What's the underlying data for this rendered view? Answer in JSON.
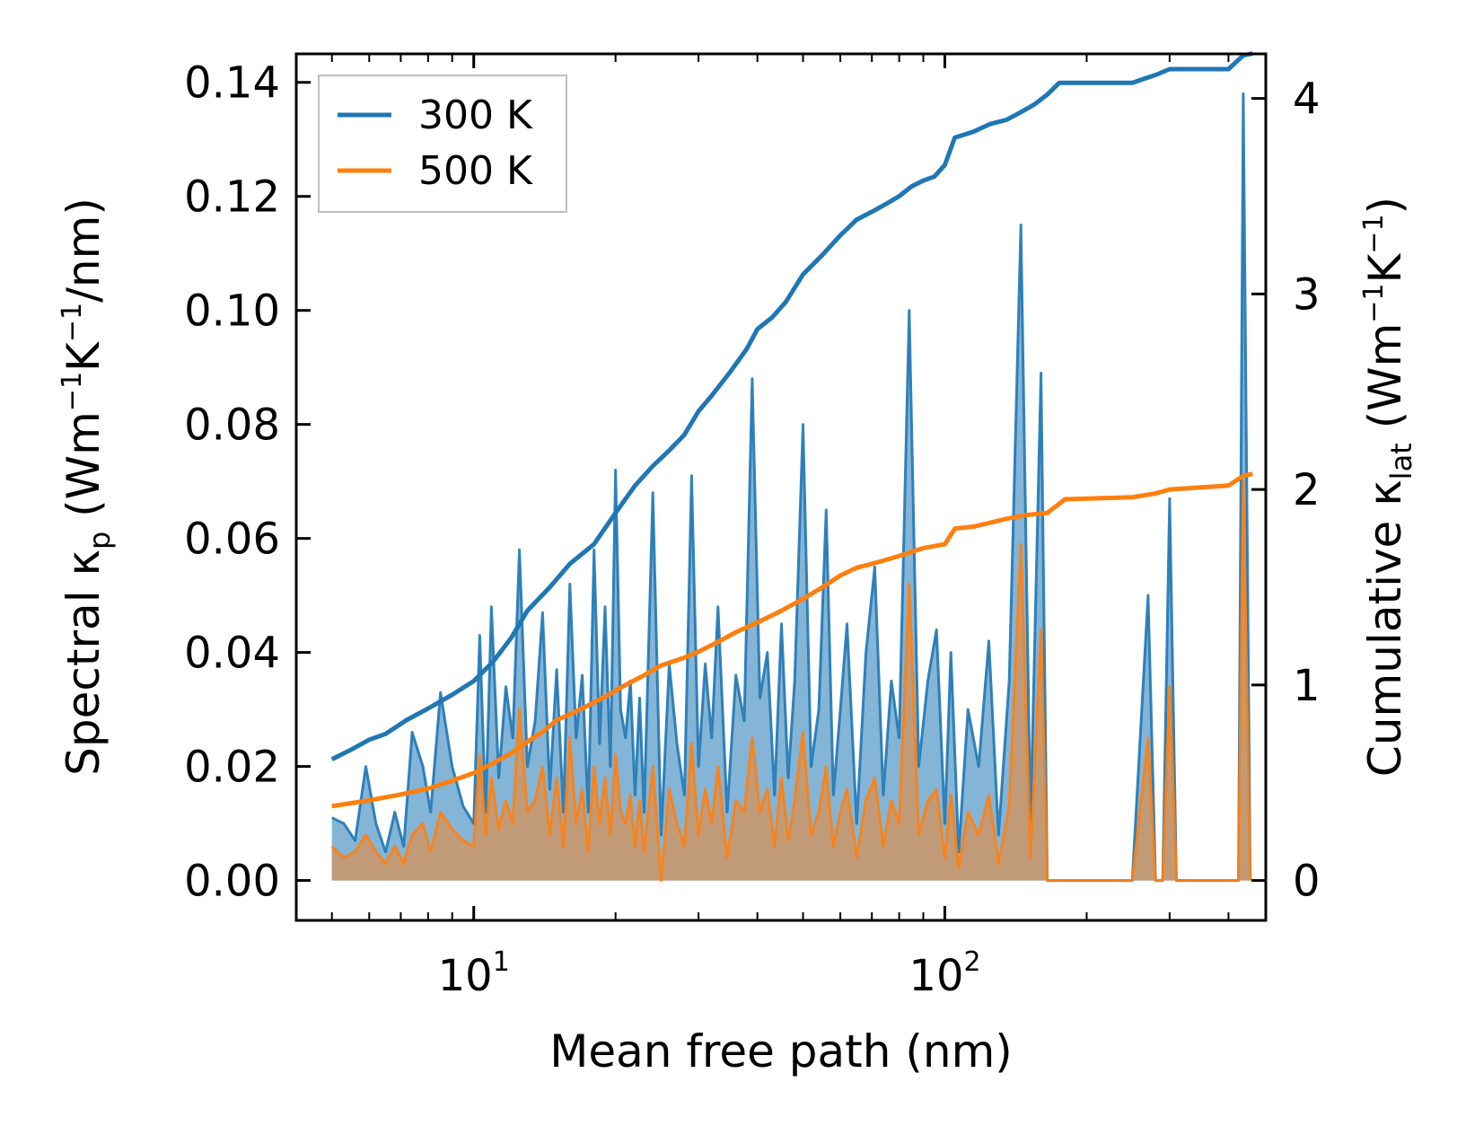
{
  "chart_data": {
    "type": "line",
    "xscale": "log",
    "xlim": [
      4.2,
      480
    ],
    "ylim_left": [
      -0.007,
      0.145
    ],
    "ylim_right": [
      -0.204,
      4.228
    ],
    "xlabel": "Mean free path (nm)",
    "ylabel_left": {
      "prefix": "Spectral κ",
      "sub": "p",
      "mid": " (Wm",
      "sup1": "−1",
      "mid2": "K",
      "sup2": "−1",
      "suffix": "/nm)"
    },
    "ylabel_right": {
      "prefix": "Cumulative κ",
      "sub": "lat",
      "mid": " (Wm",
      "sup1": "−1",
      "mid2": "K",
      "sup2": "−1",
      "suffix": ")"
    },
    "x_ticks": [
      {
        "value": 10,
        "base": "10",
        "exp": "1"
      },
      {
        "value": 100,
        "base": "10",
        "exp": "2"
      }
    ],
    "left_ticks": [
      {
        "value": 0.0,
        "label": "0.00"
      },
      {
        "value": 0.02,
        "label": "0.02"
      },
      {
        "value": 0.04,
        "label": "0.04"
      },
      {
        "value": 0.06,
        "label": "0.06"
      },
      {
        "value": 0.08,
        "label": "0.08"
      },
      {
        "value": 0.1,
        "label": "0.10"
      },
      {
        "value": 0.12,
        "label": "0.12"
      },
      {
        "value": 0.14,
        "label": "0.14"
      }
    ],
    "right_ticks": [
      {
        "value": 0,
        "label": "0"
      },
      {
        "value": 1,
        "label": "1"
      },
      {
        "value": 2,
        "label": "2"
      },
      {
        "value": 3,
        "label": "3"
      },
      {
        "value": 4,
        "label": "4"
      }
    ],
    "legend": {
      "position": "top-left",
      "entries": [
        {
          "label": "300 K",
          "color": "#1f77b4"
        },
        {
          "label": "500 K",
          "color": "#ff7f0e"
        }
      ]
    },
    "series": [
      {
        "name": "300 K",
        "axis": "right",
        "kind": "cumulative",
        "color": "#1f77b4",
        "x": [
          5.0,
          5.5,
          6.0,
          6.5,
          7.2,
          8.0,
          9.0,
          10.0,
          11.0,
          12.0,
          13.0,
          14.5,
          16.0,
          18.0,
          20.0,
          22.0,
          24.0,
          26.0,
          28.0,
          30.0,
          32.0,
          35.0,
          38.0,
          40.0,
          43.0,
          46.0,
          50.0,
          55.0,
          60.0,
          65.0,
          70.0,
          75.0,
          80.0,
          85.0,
          90.0,
          95.0,
          100.0,
          105.0,
          115.0,
          125.0,
          135.0,
          145.0,
          155.0,
          165.0,
          175.0,
          200.0,
          250.0,
          280.0,
          300.0,
          350.0,
          400.0,
          430.0,
          450.0
        ],
        "y": [
          0.62,
          0.67,
          0.72,
          0.75,
          0.82,
          0.88,
          0.95,
          1.02,
          1.12,
          1.24,
          1.38,
          1.5,
          1.62,
          1.72,
          1.88,
          2.02,
          2.12,
          2.2,
          2.28,
          2.4,
          2.48,
          2.6,
          2.72,
          2.82,
          2.88,
          2.96,
          3.1,
          3.2,
          3.3,
          3.38,
          3.42,
          3.46,
          3.5,
          3.55,
          3.58,
          3.6,
          3.66,
          3.8,
          3.83,
          3.87,
          3.89,
          3.93,
          3.97,
          4.02,
          4.08,
          4.08,
          4.08,
          4.12,
          4.15,
          4.15,
          4.15,
          4.22,
          4.23
        ]
      },
      {
        "name": "500 K",
        "axis": "right",
        "kind": "cumulative",
        "color": "#ff7f0e",
        "x": [
          5.0,
          6.0,
          7.0,
          8.0,
          9.0,
          10.0,
          11.0,
          12.0,
          13.0,
          14.0,
          15.0,
          17.0,
          19.0,
          21.0,
          23.0,
          25.0,
          28.0,
          30.0,
          33.0,
          36.0,
          40.0,
          45.0,
          50.0,
          55.0,
          60.0,
          65.0,
          70.0,
          75.0,
          80.0,
          90.0,
          100.0,
          105.0,
          115.0,
          125.0,
          135.0,
          150.0,
          165.0,
          180.0,
          250.0,
          280.0,
          300.0,
          400.0,
          430.0,
          450.0
        ],
        "y": [
          0.38,
          0.41,
          0.44,
          0.47,
          0.51,
          0.55,
          0.6,
          0.65,
          0.71,
          0.76,
          0.82,
          0.88,
          0.94,
          1.0,
          1.05,
          1.1,
          1.14,
          1.17,
          1.22,
          1.27,
          1.32,
          1.38,
          1.44,
          1.5,
          1.56,
          1.6,
          1.62,
          1.64,
          1.66,
          1.7,
          1.72,
          1.8,
          1.81,
          1.83,
          1.85,
          1.87,
          1.88,
          1.95,
          1.96,
          1.98,
          2.0,
          2.02,
          2.07,
          2.08
        ]
      },
      {
        "name": "300 K",
        "axis": "left",
        "kind": "spectral",
        "color": "#1f77b4",
        "x": [
          5.0,
          5.3,
          5.6,
          5.9,
          6.2,
          6.5,
          6.8,
          7.1,
          7.4,
          7.8,
          8.1,
          8.5,
          9.0,
          9.5,
          10.0,
          10.3,
          10.6,
          10.9,
          11.3,
          11.7,
          12.1,
          12.5,
          13.0,
          13.5,
          14.0,
          14.5,
          15.0,
          15.5,
          16.0,
          16.5,
          17.0,
          17.5,
          18.0,
          18.5,
          19.0,
          19.5,
          20.0,
          20.5,
          21.0,
          21.5,
          22.0,
          22.5,
          23.0,
          24.0,
          25.0,
          26.0,
          27.0,
          28.0,
          29.0,
          30.0,
          31.0,
          32.0,
          33.0,
          34.5,
          36.0,
          37.5,
          39.0,
          40.5,
          42.0,
          43.5,
          45.0,
          46.5,
          48.0,
          50.0,
          52.0,
          54.0,
          56.0,
          58.0,
          60.0,
          62.0,
          65.0,
          68.0,
          71.0,
          74.0,
          77.0,
          80.0,
          84.0,
          88.0,
          92.0,
          96.0,
          100.0,
          103.0,
          107.0,
          112.0,
          118.0,
          124.0,
          130.0,
          137.0,
          145.0,
          152.0,
          160.0,
          165.0,
          170.0,
          175.0,
          180.0,
          185.0,
          200.0,
          250.0,
          270.0,
          280.0,
          290.0,
          300.0,
          310.0,
          330.0,
          350.0,
          400.0,
          420.0,
          430.0,
          445.0
        ],
        "y": [
          0.011,
          0.01,
          0.007,
          0.02,
          0.01,
          0.005,
          0.012,
          0.006,
          0.026,
          0.02,
          0.012,
          0.033,
          0.02,
          0.013,
          0.01,
          0.043,
          0.012,
          0.048,
          0.018,
          0.034,
          0.025,
          0.058,
          0.02,
          0.028,
          0.047,
          0.016,
          0.037,
          0.012,
          0.052,
          0.025,
          0.036,
          0.012,
          0.058,
          0.024,
          0.048,
          0.02,
          0.072,
          0.03,
          0.025,
          0.035,
          0.015,
          0.032,
          0.012,
          0.068,
          0.008,
          0.038,
          0.024,
          0.015,
          0.071,
          0.02,
          0.038,
          0.025,
          0.048,
          0.012,
          0.036,
          0.028,
          0.088,
          0.032,
          0.04,
          0.015,
          0.045,
          0.018,
          0.035,
          0.08,
          0.02,
          0.03,
          0.065,
          0.015,
          0.03,
          0.045,
          0.01,
          0.04,
          0.055,
          0.015,
          0.035,
          0.025,
          0.1,
          0.02,
          0.035,
          0.044,
          0.01,
          0.04,
          0.005,
          0.03,
          0.02,
          0.042,
          0.008,
          0.035,
          0.115,
          0.01,
          0.089,
          0.0,
          0.0,
          0.0,
          0.0,
          0.0,
          0.0,
          0.0,
          0.05,
          0.0,
          0.0,
          0.067,
          0.0,
          0.0,
          0.0,
          0.0,
          0.0,
          0.138,
          0.0
        ]
      },
      {
        "name": "500 K",
        "axis": "left",
        "kind": "spectral",
        "color": "#ff7f0e",
        "x": [
          5.0,
          5.3,
          5.6,
          5.9,
          6.2,
          6.5,
          6.8,
          7.1,
          7.4,
          7.8,
          8.1,
          8.5,
          9.0,
          9.5,
          10.0,
          10.3,
          10.6,
          10.9,
          11.3,
          11.7,
          12.1,
          12.5,
          13.0,
          13.5,
          14.0,
          14.5,
          15.0,
          15.5,
          16.0,
          16.5,
          17.0,
          17.5,
          18.0,
          18.5,
          19.0,
          19.5,
          20.0,
          20.5,
          21.0,
          21.5,
          22.0,
          22.5,
          23.0,
          24.0,
          25.0,
          26.0,
          27.0,
          28.0,
          29.0,
          30.0,
          31.0,
          32.0,
          33.0,
          34.5,
          36.0,
          37.5,
          39.0,
          40.5,
          42.0,
          43.5,
          45.0,
          46.5,
          48.0,
          50.0,
          52.0,
          54.0,
          56.0,
          58.0,
          60.0,
          62.0,
          65.0,
          68.0,
          71.0,
          74.0,
          77.0,
          80.0,
          84.0,
          88.0,
          92.0,
          96.0,
          100.0,
          103.0,
          107.0,
          112.0,
          118.0,
          124.0,
          130.0,
          137.0,
          145.0,
          152.0,
          160.0,
          165.0,
          170.0,
          175.0,
          180.0,
          185.0,
          200.0,
          250.0,
          270.0,
          280.0,
          290.0,
          300.0,
          310.0,
          330.0,
          350.0,
          400.0,
          420.0,
          430.0,
          445.0
        ],
        "y": [
          0.006,
          0.004,
          0.005,
          0.008,
          0.005,
          0.003,
          0.006,
          0.003,
          0.008,
          0.01,
          0.005,
          0.012,
          0.009,
          0.007,
          0.006,
          0.022,
          0.008,
          0.018,
          0.009,
          0.014,
          0.01,
          0.03,
          0.012,
          0.014,
          0.02,
          0.008,
          0.018,
          0.006,
          0.025,
          0.01,
          0.016,
          0.005,
          0.02,
          0.01,
          0.018,
          0.008,
          0.022,
          0.012,
          0.01,
          0.015,
          0.006,
          0.014,
          0.005,
          0.02,
          0.0,
          0.016,
          0.01,
          0.006,
          0.024,
          0.008,
          0.016,
          0.01,
          0.02,
          0.004,
          0.014,
          0.012,
          0.025,
          0.012,
          0.016,
          0.006,
          0.018,
          0.007,
          0.014,
          0.026,
          0.008,
          0.012,
          0.02,
          0.006,
          0.012,
          0.016,
          0.004,
          0.014,
          0.018,
          0.006,
          0.014,
          0.01,
          0.052,
          0.008,
          0.014,
          0.016,
          0.004,
          0.015,
          0.002,
          0.012,
          0.008,
          0.015,
          0.003,
          0.013,
          0.059,
          0.004,
          0.044,
          0.0,
          0.0,
          0.0,
          0.0,
          0.0,
          0.0,
          0.0,
          0.025,
          0.0,
          0.0,
          0.034,
          0.0,
          0.0,
          0.0,
          0.0,
          0.0,
          0.07,
          0.0
        ]
      }
    ]
  }
}
